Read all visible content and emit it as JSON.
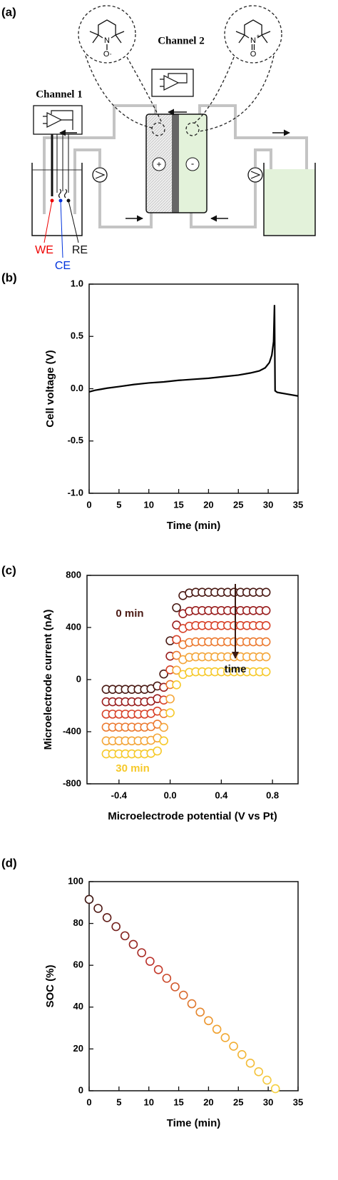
{
  "diagram": {
    "panel": "(a)",
    "channel_1": "Channel 1",
    "channel_2": "Channel 2",
    "electrodes": [
      "WE",
      "CE",
      "RE"
    ],
    "cell_poles": [
      "+",
      "-"
    ],
    "molecules": [
      {
        "ring_atom": "N",
        "oxygen": "O·"
      },
      {
        "ring_atom": "N",
        "charge": "+",
        "oxygen": "O"
      }
    ]
  },
  "chart_data": [
    {
      "panel": "(b)",
      "type": "line",
      "color": "#000000",
      "x": [
        0,
        1,
        2,
        3,
        5,
        7.5,
        10,
        12.5,
        15,
        17.5,
        20,
        22.5,
        25,
        27,
        28.5,
        29.5,
        30.2,
        30.6,
        30.9,
        31.05,
        31.15,
        31.5,
        32,
        33,
        35
      ],
      "values": [
        -0.03,
        -0.015,
        -0.005,
        0.005,
        0.02,
        0.04,
        0.055,
        0.065,
        0.08,
        0.09,
        0.1,
        0.115,
        0.13,
        0.15,
        0.17,
        0.2,
        0.25,
        0.32,
        0.45,
        0.8,
        -0.02,
        -0.035,
        -0.04,
        -0.05,
        -0.07
      ],
      "xlabel": "Time (min)",
      "ylabel": "Cell voltage (V)",
      "xlim": [
        0,
        35
      ],
      "xticks": [
        0,
        5,
        10,
        15,
        20,
        25,
        30,
        35
      ],
      "ylim": [
        -1,
        1
      ],
      "yticks": [
        {
          "value": -1,
          "label": "-1.0"
        },
        -0.5,
        {
          "value": 0,
          "label": "0.0"
        },
        0.5,
        {
          "value": 1,
          "label": "1.0"
        }
      ]
    },
    {
      "panel": "(c)",
      "type": "scatter",
      "x": [
        -0.5,
        -0.45,
        -0.4,
        -0.35,
        -0.3,
        -0.25,
        -0.2,
        -0.15,
        -0.1,
        -0.05,
        0,
        0.05,
        0.1,
        0.15,
        0.2,
        0.25,
        0.3,
        0.35,
        0.4,
        0.45,
        0.5,
        0.55,
        0.6,
        0.65,
        0.7,
        0.75
      ],
      "series": [
        {
          "color": "#4a1a14",
          "values": [
            -75,
            -75,
            -75,
            -75,
            -75,
            -75,
            -75,
            -70,
            -49,
            43,
            298,
            552,
            645,
            665,
            670,
            670,
            670,
            670,
            670,
            670,
            670,
            670,
            670,
            670,
            670,
            670
          ]
        },
        {
          "color": "#9a1e1e",
          "values": [
            -170,
            -170,
            -170,
            -170,
            -170,
            -170,
            -170,
            -165,
            -146,
            -59,
            180,
            419,
            506,
            525,
            530,
            530,
            530,
            530,
            530,
            530,
            530,
            530,
            530,
            530,
            530,
            530
          ]
        },
        {
          "color": "#d8432a",
          "values": [
            -265,
            -265,
            -265,
            -265,
            -265,
            -265,
            -265,
            -260,
            -242,
            -157,
            75,
            307,
            392,
            410,
            415,
            415,
            415,
            415,
            415,
            415,
            415,
            415,
            415,
            415,
            415,
            415
          ]
        },
        {
          "color": "#ec7a30",
          "values": [
            -365,
            -365,
            -365,
            -365,
            -365,
            -365,
            -365,
            -361,
            -342,
            -261,
            -38,
            186,
            268,
            285,
            290,
            290,
            290,
            290,
            290,
            290,
            290,
            290,
            290,
            290,
            290,
            290
          ]
        },
        {
          "color": "#f4a63a",
          "values": [
            -470,
            -470,
            -470,
            -470,
            -470,
            -470,
            -470,
            -466,
            -448,
            -367,
            -148,
            72,
            153,
            171,
            175,
            175,
            175,
            175,
            175,
            175,
            175,
            175,
            175,
            175,
            175,
            175
          ]
        },
        {
          "color": "#f6c92a",
          "values": [
            -570,
            -570,
            -570,
            -570,
            -570,
            -570,
            -570,
            -566,
            -548,
            -470,
            -255,
            -40,
            39,
            56,
            60,
            60,
            60,
            60,
            60,
            60,
            60,
            60,
            60,
            60,
            60,
            60
          ]
        }
      ],
      "annotations": [
        "0 min",
        "time",
        "30 min"
      ],
      "xlabel": "Microelectrode potential (V vs Pt)",
      "ylabel": "Microelectrode current (nA)",
      "xlim": [
        -0.65,
        1.0
      ],
      "xticks": [
        {
          "value": -0.4,
          "label": "-0.4"
        },
        {
          "value": 0,
          "label": "0.0"
        },
        0.4,
        0.8
      ],
      "ylim": [
        -800,
        800
      ],
      "yticks": [
        -800,
        -400,
        0,
        400,
        800
      ]
    },
    {
      "panel": "(d)",
      "type": "scatter",
      "colormap": [
        "#3c1410",
        "#c0302a",
        "#f0a030",
        "#f5d040"
      ],
      "x": [
        0,
        1.5,
        3,
        4.5,
        6,
        7.4,
        8.8,
        10.2,
        11.6,
        13,
        14.4,
        15.8,
        17.2,
        18.6,
        20,
        21.4,
        22.8,
        24.2,
        25.6,
        27,
        28.4,
        29.8,
        31.2
      ],
      "values": [
        91.5,
        87.2,
        82.8,
        78.5,
        74.1,
        70.0,
        66.0,
        61.9,
        57.9,
        53.8,
        49.7,
        45.7,
        41.6,
        37.6,
        33.5,
        29.4,
        25.4,
        21.3,
        17.3,
        13.2,
        9.1,
        5.1,
        1.0
      ],
      "xlabel": "Time (min)",
      "ylabel": "SOC (%)",
      "xlim": [
        0,
        35
      ],
      "xticks": [
        0,
        5,
        10,
        15,
        20,
        25,
        30,
        35
      ],
      "ylim": [
        0,
        100
      ],
      "yticks": [
        0,
        20,
        40,
        60,
        80,
        100
      ]
    }
  ]
}
